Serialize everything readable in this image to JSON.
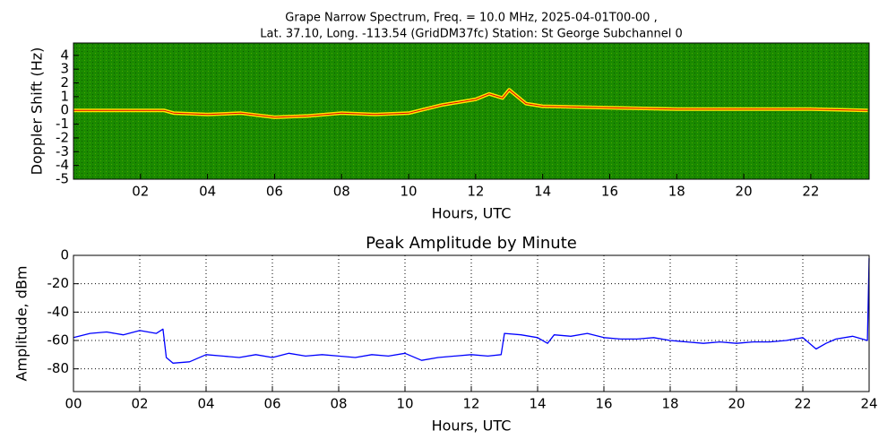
{
  "chart_data": [
    {
      "type": "spectrogram",
      "title": [
        "Grape Narrow Spectrum, Freq. = 10.0 MHz, 2025-04-01T00-00 ,",
        "Lat.  37.10, Long. -113.54 (GridDM37fc) Station: St George Subchannel 0"
      ],
      "xlabel": "Hours, UTC",
      "ylabel": "Doppler Shift (Hz)",
      "xlim": [
        0,
        23.74
      ],
      "ylim": [
        -5,
        4.9
      ],
      "xticks": [
        {
          "value": 2,
          "label": "02"
        },
        {
          "value": 4,
          "label": "04"
        },
        {
          "value": 6,
          "label": "06"
        },
        {
          "value": 8,
          "label": "08"
        },
        {
          "value": 10,
          "label": "10"
        },
        {
          "value": 12,
          "label": "12"
        },
        {
          "value": 14,
          "label": "14"
        },
        {
          "value": 16,
          "label": "16"
        },
        {
          "value": 18,
          "label": "18"
        },
        {
          "value": 20,
          "label": "20"
        },
        {
          "value": 22,
          "label": "22"
        }
      ],
      "yticks": [
        -5,
        -4,
        -3,
        -2,
        -1,
        0,
        1,
        2,
        3,
        4
      ],
      "background": "#1b8a00",
      "grid": false,
      "x": [
        0,
        1,
        2,
        2.7,
        3,
        4,
        5,
        6,
        7,
        8,
        9,
        10,
        11,
        12,
        12.4,
        12.8,
        13,
        13.5,
        14,
        16,
        18,
        20,
        22,
        23.7
      ],
      "series": [
        {
          "color": "#ffe600",
          "values": [
            0,
            0,
            0,
            0,
            -0.2,
            -0.3,
            -0.2,
            -0.5,
            -0.4,
            -0.2,
            -0.3,
            -0.2,
            0.4,
            0.8,
            1.2,
            0.9,
            1.5,
            0.5,
            0.3,
            0.2,
            0.1,
            0.1,
            0.1,
            0
          ]
        }
      ]
    },
    {
      "type": "line",
      "title": "Peak Amplitude by Minute",
      "xlabel": "Hours, UTC",
      "ylabel": "Amplitude, dBm",
      "xlim": [
        0,
        24
      ],
      "ylim": [
        -96,
        0
      ],
      "xticks": [
        {
          "value": 0,
          "label": "00"
        },
        {
          "value": 2,
          "label": "02"
        },
        {
          "value": 4,
          "label": "04"
        },
        {
          "value": 6,
          "label": "06"
        },
        {
          "value": 8,
          "label": "08"
        },
        {
          "value": 10,
          "label": "10"
        },
        {
          "value": 12,
          "label": "12"
        },
        {
          "value": 14,
          "label": "14"
        },
        {
          "value": 16,
          "label": "16"
        },
        {
          "value": 18,
          "label": "18"
        },
        {
          "value": 20,
          "label": "20"
        },
        {
          "value": 22,
          "label": "22"
        },
        {
          "value": 24,
          "label": "24"
        }
      ],
      "yticks": [
        -80,
        -60,
        -40,
        -20,
        0
      ],
      "grid": true,
      "x": [
        0,
        0.5,
        1,
        1.5,
        2,
        2.5,
        2.7,
        2.8,
        3,
        3.5,
        4,
        4.5,
        5,
        5.5,
        6,
        6.5,
        7,
        7.5,
        8,
        8.5,
        9,
        9.5,
        10,
        10.5,
        11,
        11.5,
        12,
        12.5,
        12.9,
        13,
        13.5,
        14,
        14.3,
        14.5,
        15,
        15.5,
        16,
        16.5,
        17,
        17.5,
        18,
        18.5,
        19,
        19.5,
        20,
        20.5,
        21,
        21.5,
        22,
        22.4,
        22.7,
        23,
        23.5,
        23.95,
        24
      ],
      "series": [
        {
          "color": "#0000ff",
          "values": [
            -58,
            -55,
            -54,
            -56,
            -53,
            -55,
            -52,
            -72,
            -76,
            -75,
            -70,
            -71,
            -72,
            -70,
            -72,
            -69,
            -71,
            -70,
            -71,
            -72,
            -70,
            -71,
            -69,
            -74,
            -72,
            -71,
            -70,
            -71,
            -70,
            -55,
            -56,
            -58,
            -62,
            -56,
            -57,
            -55,
            -58,
            -59,
            -59,
            -58,
            -60,
            -61,
            -62,
            -61,
            -62,
            -61,
            -61,
            -60,
            -58,
            -66,
            -62,
            -59,
            -57,
            -60,
            -2
          ]
        }
      ]
    }
  ]
}
